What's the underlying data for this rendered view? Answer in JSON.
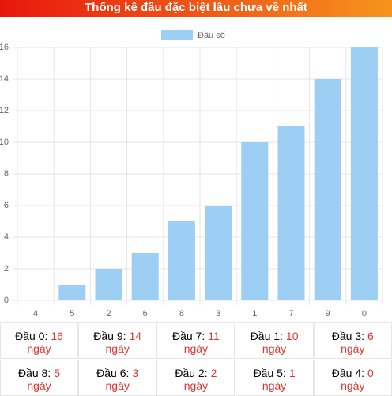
{
  "chart_data": {
    "type": "bar",
    "title": "Thống kê đầu đặc biệt lâu chưa về nhất",
    "categories": [
      "4",
      "5",
      "2",
      "6",
      "8",
      "3",
      "1",
      "7",
      "9",
      "0"
    ],
    "series": [
      {
        "name": "Đầu số",
        "color": "#9ccff3",
        "values": [
          0,
          1,
          2,
          3,
          5,
          6,
          10,
          11,
          14,
          16
        ]
      }
    ],
    "ylim": [
      0,
      16
    ],
    "yticks": [
      0,
      2,
      4,
      6,
      8,
      10,
      12,
      14,
      16
    ],
    "grid": true
  },
  "table": {
    "rows": [
      [
        {
          "label": "Đầu 0:",
          "value": "16",
          "unit": "ngày"
        },
        {
          "label": "Đầu 9:",
          "value": "14",
          "unit": "ngày"
        },
        {
          "label": "Đầu 7:",
          "value": "11",
          "unit": "ngày"
        },
        {
          "label": "Đầu 1:",
          "value": "10",
          "unit": "ngày"
        },
        {
          "label": "Đầu 3:",
          "value": "6",
          "unit": "ngày"
        }
      ],
      [
        {
          "label": "Đầu 8:",
          "value": "5",
          "unit": "ngày"
        },
        {
          "label": "Đầu 6:",
          "value": "3",
          "unit": "ngày"
        },
        {
          "label": "Đầu 2:",
          "value": "2",
          "unit": "ngày"
        },
        {
          "label": "Đầu 5:",
          "value": "1",
          "unit": "ngày"
        },
        {
          "label": "Đầu 4:",
          "value": "0",
          "unit": "ngày"
        }
      ]
    ]
  }
}
